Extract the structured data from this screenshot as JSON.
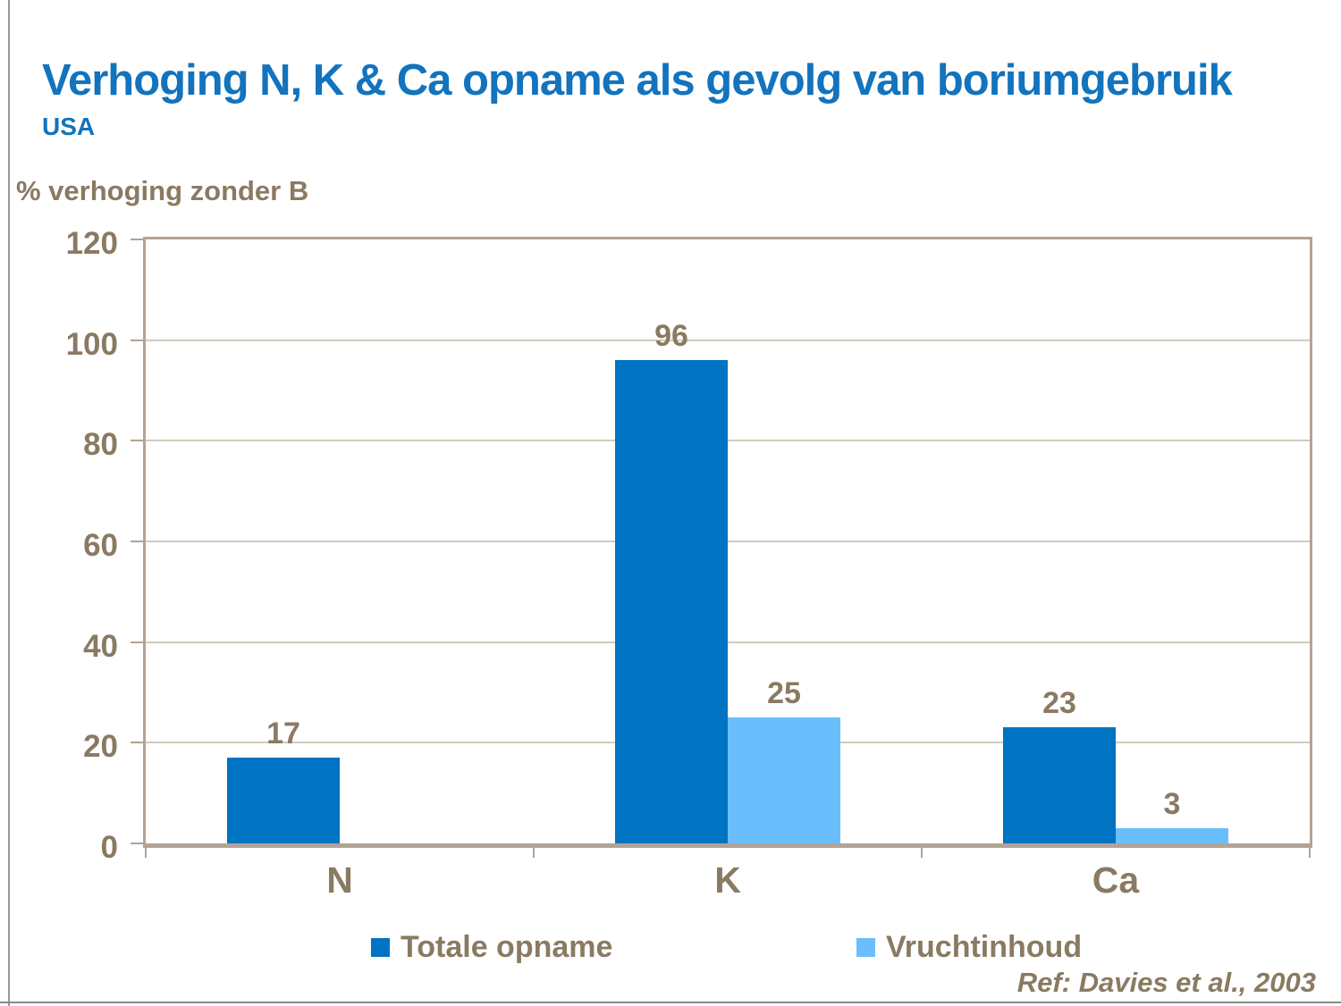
{
  "page": {
    "reference": "Ref: Davies et al., 2003"
  },
  "colors": {
    "title_blue": "#1273be",
    "text_brown": "#8a7a62",
    "axis_tan": "#b3a396",
    "gridline": "#d2cabd",
    "series_dark_blue": "#0073c2",
    "series_light_blue": "#6abefb"
  },
  "chart_data": {
    "type": "bar",
    "title": "Verhoging N, K & Ca opname als gevolg van boriumgebruik",
    "subtitle": "USA",
    "ylabel": "% verhoging zonder B",
    "categories": [
      "N",
      "K",
      "Ca"
    ],
    "series": [
      {
        "name": "Totale opname",
        "color": "#0073c2",
        "values": [
          17,
          96,
          23
        ]
      },
      {
        "name": "Vruchtinhoud",
        "color": "#6abefb",
        "values": [
          null,
          25,
          3
        ]
      }
    ],
    "ylim": [
      0,
      120
    ],
    "yticks": [
      0,
      20,
      40,
      60,
      80,
      100,
      120
    ],
    "grid": true,
    "legend_position": "bottom"
  }
}
